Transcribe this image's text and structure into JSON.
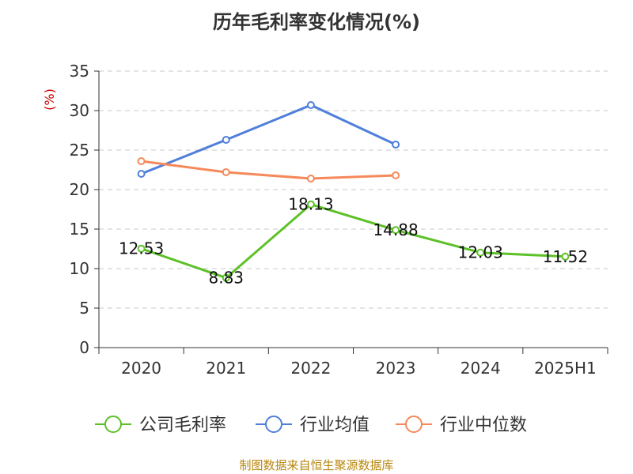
{
  "chart_data": {
    "type": "line",
    "title": "历年毛利率变化情况(%)",
    "ylabel": "(%)",
    "xlabel": "",
    "categories": [
      "2020",
      "2021",
      "2022",
      "2023",
      "2024",
      "2025H1"
    ],
    "ylim": [
      0,
      35
    ],
    "yticks": [
      0,
      5,
      10,
      15,
      20,
      25,
      30,
      35
    ],
    "grid": true,
    "legend_position": "bottom",
    "series": [
      {
        "name": "公司毛利率",
        "color": "#5cc128",
        "values": [
          12.53,
          8.83,
          18.13,
          14.88,
          12.03,
          11.52
        ],
        "labels": [
          "12.53",
          "8.83",
          "18.13",
          "14.88",
          "12.03",
          "11.52"
        ]
      },
      {
        "name": "行业均值",
        "color": "#4f7fdb",
        "values": [
          22.0,
          26.3,
          30.7,
          25.7,
          null,
          null
        ]
      },
      {
        "name": "行业中位数",
        "color": "#f5895b",
        "values": [
          23.6,
          22.2,
          21.4,
          21.8,
          null,
          null
        ]
      }
    ]
  },
  "source": "制图数据来自恒生聚源数据库"
}
